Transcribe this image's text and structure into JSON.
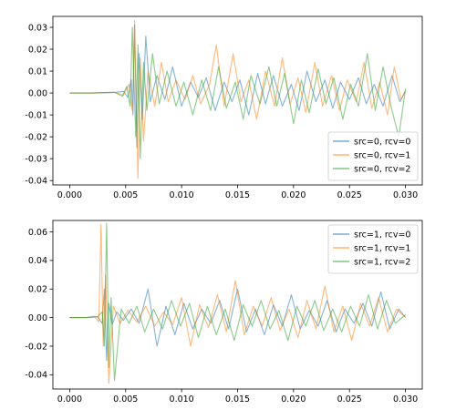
{
  "colors": {
    "rcv0": "#1f77b4",
    "rcv1": "#ff7f0e",
    "rcv2": "#2ca02c"
  },
  "chart_data": [
    {
      "type": "line",
      "title": "",
      "xlabel": "",
      "ylabel": "",
      "xlim": [
        -0.0015,
        0.0315
      ],
      "ylim": [
        -0.042,
        0.035
      ],
      "xticks": [
        "0.000",
        "0.005",
        "0.010",
        "0.015",
        "0.020",
        "0.025",
        "0.030"
      ],
      "yticks": [
        "-0.04",
        "-0.03",
        "-0.02",
        "-0.01",
        "0.00",
        "0.01",
        "0.02",
        "0.03"
      ],
      "legend_placement": "lower-right",
      "grid": false,
      "series": [
        {
          "name": "src=0, rcv=0",
          "color": "#1f77b4",
          "x": [
            0.0,
            0.002,
            0.004,
            0.0048,
            0.0052,
            0.0055,
            0.00565,
            0.0058,
            0.006,
            0.0062,
            0.0065,
            0.0068,
            0.0072,
            0.0078,
            0.0085,
            0.0092,
            0.01,
            0.0108,
            0.0115,
            0.0122,
            0.013,
            0.0138,
            0.0145,
            0.0152,
            0.016,
            0.0168,
            0.0175,
            0.0182,
            0.019,
            0.0198,
            0.0205,
            0.0212,
            0.022,
            0.0228,
            0.0235,
            0.0242,
            0.025,
            0.0258,
            0.0265,
            0.0272,
            0.028,
            0.0288,
            0.0295,
            0.03
          ],
          "y": [
            0.0,
            0.0,
            0.0002,
            0.0008,
            -0.002,
            0.006,
            -0.01,
            0.031,
            -0.025,
            0.018,
            -0.012,
            0.026,
            -0.004,
            0.008,
            -0.003,
            0.012,
            -0.006,
            0.005,
            -0.002,
            0.007,
            -0.008,
            0.005,
            -0.004,
            0.006,
            -0.01,
            0.009,
            -0.005,
            0.008,
            -0.006,
            0.004,
            -0.008,
            0.01,
            -0.004,
            0.006,
            -0.007,
            0.005,
            -0.003,
            0.007,
            -0.005,
            0.004,
            -0.006,
            0.008,
            -0.004,
            0.001
          ]
        },
        {
          "name": "src=0, rcv=1",
          "color": "#ff7f0e",
          "x": [
            0.0,
            0.002,
            0.004,
            0.0048,
            0.0053,
            0.0056,
            0.0058,
            0.0061,
            0.0063,
            0.0066,
            0.007,
            0.0076,
            0.0082,
            0.0088,
            0.0095,
            0.0103,
            0.011,
            0.0117,
            0.0125,
            0.0131,
            0.0138,
            0.0146,
            0.0153,
            0.016,
            0.0167,
            0.0175,
            0.0183,
            0.019,
            0.0197,
            0.0204,
            0.0211,
            0.0219,
            0.0226,
            0.0234,
            0.0241,
            0.0248,
            0.0256,
            0.0263,
            0.027,
            0.0277,
            0.0284,
            0.029,
            0.0296,
            0.03
          ],
          "y": [
            0.0,
            0.0,
            0.0003,
            -0.001,
            0.004,
            -0.008,
            0.033,
            -0.039,
            0.016,
            -0.022,
            0.01,
            -0.006,
            0.014,
            -0.004,
            0.006,
            -0.003,
            0.008,
            -0.005,
            0.004,
            0.022,
            -0.006,
            0.018,
            -0.004,
            0.006,
            -0.012,
            0.01,
            -0.006,
            0.016,
            -0.005,
            0.007,
            -0.009,
            0.014,
            -0.006,
            0.008,
            -0.008,
            0.006,
            -0.004,
            0.014,
            -0.007,
            0.005,
            -0.01,
            0.012,
            -0.003,
            0.001
          ]
        },
        {
          "name": "src=0, rcv=2",
          "color": "#2ca02c",
          "x": [
            0.0,
            0.002,
            0.004,
            0.0047,
            0.0051,
            0.0054,
            0.0056,
            0.0059,
            0.0061,
            0.0063,
            0.0066,
            0.0069,
            0.0074,
            0.008,
            0.0087,
            0.0095,
            0.0102,
            0.011,
            0.0118,
            0.0126,
            0.0133,
            0.014,
            0.0148,
            0.0155,
            0.0162,
            0.017,
            0.0178,
            0.0185,
            0.0192,
            0.02,
            0.0207,
            0.0214,
            0.0222,
            0.0229,
            0.0236,
            0.0244,
            0.0251,
            0.0258,
            0.0266,
            0.0273,
            0.028,
            0.0287,
            0.0294,
            0.03
          ],
          "y": [
            0.0,
            0.0,
            0.0004,
            -0.0015,
            0.003,
            -0.006,
            0.03,
            -0.02,
            0.022,
            -0.03,
            0.014,
            -0.008,
            0.018,
            -0.005,
            0.01,
            -0.006,
            0.005,
            -0.01,
            0.006,
            -0.008,
            0.012,
            -0.007,
            0.005,
            -0.012,
            0.008,
            -0.005,
            0.012,
            -0.006,
            0.009,
            -0.014,
            0.006,
            -0.009,
            0.011,
            -0.005,
            0.007,
            -0.012,
            0.004,
            -0.006,
            0.018,
            -0.008,
            0.012,
            -0.006,
            -0.02,
            0.002
          ]
        }
      ]
    },
    {
      "type": "line",
      "title": "",
      "xlabel": "",
      "ylabel": "",
      "xlim": [
        -0.0015,
        0.0315
      ],
      "ylim": [
        -0.05,
        0.068
      ],
      "xticks": [
        "0.000",
        "0.005",
        "0.010",
        "0.015",
        "0.020",
        "0.025",
        "0.030"
      ],
      "yticks": [
        "-0.04",
        "-0.02",
        "0.00",
        "0.02",
        "0.04",
        "0.06"
      ],
      "legend_placement": "upper-right",
      "grid": false,
      "series": [
        {
          "name": "src=1, rcv=0",
          "color": "#1f77b4",
          "x": [
            0.0,
            0.0015,
            0.0025,
            0.0029,
            0.0031,
            0.0033,
            0.0035,
            0.0038,
            0.0042,
            0.0048,
            0.0055,
            0.0062,
            0.007,
            0.0078,
            0.0086,
            0.0094,
            0.0102,
            0.011,
            0.0118,
            0.0126,
            0.0134,
            0.0142,
            0.015,
            0.0158,
            0.0166,
            0.0174,
            0.0182,
            0.019,
            0.0198,
            0.0206,
            0.0214,
            0.0222,
            0.023,
            0.0238,
            0.0246,
            0.0254,
            0.0262,
            0.027,
            0.0278,
            0.0286,
            0.0294,
            0.03
          ],
          "y": [
            0.0,
            0.0,
            0.0005,
            -0.004,
            0.02,
            -0.03,
            0.01,
            -0.005,
            0.004,
            -0.002,
            0.006,
            -0.004,
            0.02,
            -0.02,
            0.008,
            -0.012,
            0.01,
            -0.008,
            0.006,
            -0.004,
            0.012,
            -0.008,
            0.02,
            -0.01,
            0.006,
            -0.012,
            0.009,
            -0.006,
            0.016,
            -0.008,
            0.005,
            -0.006,
            0.012,
            -0.01,
            0.006,
            -0.004,
            0.01,
            -0.006,
            0.018,
            -0.008,
            0.006,
            0.0
          ]
        },
        {
          "name": "src=1, rcv=1",
          "color": "#ff7f0e",
          "x": [
            0.0,
            0.0015,
            0.0022,
            0.0026,
            0.0028,
            0.003,
            0.0032,
            0.0035,
            0.0039,
            0.0045,
            0.0052,
            0.006,
            0.0068,
            0.0076,
            0.0084,
            0.0092,
            0.01,
            0.0108,
            0.0116,
            0.0124,
            0.0132,
            0.014,
            0.0148,
            0.0156,
            0.0164,
            0.0172,
            0.018,
            0.0188,
            0.0196,
            0.0204,
            0.0212,
            0.022,
            0.0228,
            0.0236,
            0.0244,
            0.0252,
            0.026,
            0.0268,
            0.0276,
            0.0284,
            0.0292,
            0.03
          ],
          "y": [
            0.0,
            0.0,
            0.001,
            -0.003,
            0.065,
            -0.02,
            0.03,
            -0.046,
            0.008,
            -0.004,
            0.005,
            -0.003,
            0.008,
            -0.006,
            0.004,
            -0.005,
            0.014,
            -0.02,
            0.009,
            -0.007,
            0.016,
            -0.01,
            0.026,
            -0.012,
            0.008,
            -0.006,
            0.014,
            -0.009,
            0.006,
            -0.014,
            0.012,
            -0.008,
            0.022,
            -0.01,
            0.008,
            -0.016,
            0.01,
            -0.006,
            0.014,
            -0.01,
            0.006,
            0.0
          ]
        },
        {
          "name": "src=1, rcv=2",
          "color": "#2ca02c",
          "x": [
            0.0,
            0.0015,
            0.0025,
            0.0029,
            0.0031,
            0.0033,
            0.0035,
            0.0037,
            0.004,
            0.0046,
            0.0053,
            0.006,
            0.0067,
            0.0075,
            0.0083,
            0.0091,
            0.0099,
            0.0107,
            0.0115,
            0.0123,
            0.0131,
            0.0139,
            0.0147,
            0.0155,
            0.0163,
            0.0171,
            0.0179,
            0.0187,
            0.0195,
            0.0203,
            0.0211,
            0.0219,
            0.0227,
            0.0235,
            0.0243,
            0.0251,
            0.0259,
            0.0267,
            0.0275,
            0.0283,
            0.0291,
            0.03
          ],
          "y": [
            0.0,
            0.0,
            0.0008,
            0.004,
            -0.02,
            0.066,
            -0.035,
            0.014,
            -0.044,
            0.006,
            -0.004,
            0.008,
            -0.01,
            0.006,
            -0.008,
            0.012,
            -0.006,
            0.01,
            -0.014,
            0.008,
            -0.012,
            0.006,
            -0.016,
            0.009,
            -0.006,
            0.012,
            -0.008,
            0.005,
            -0.016,
            0.008,
            -0.006,
            0.012,
            -0.009,
            0.006,
            -0.01,
            0.008,
            -0.006,
            0.016,
            -0.008,
            0.012,
            -0.004,
            0.002
          ]
        }
      ]
    }
  ]
}
